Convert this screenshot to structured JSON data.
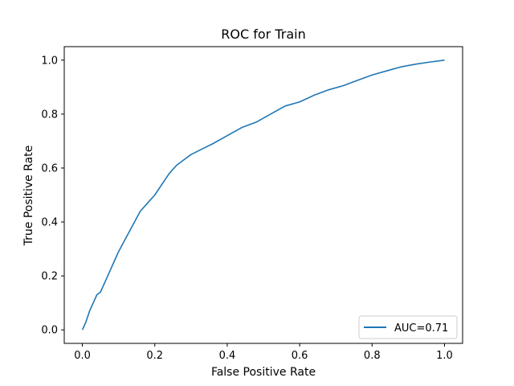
{
  "chart_data": {
    "type": "line",
    "title": "ROC for Train",
    "xlabel": "False Positive Rate",
    "ylabel": "True Positive Rate",
    "xlim": [
      -0.05,
      1.05
    ],
    "ylim": [
      -0.05,
      1.05
    ],
    "xticks": [
      0.0,
      0.2,
      0.4,
      0.6,
      0.8,
      1.0
    ],
    "yticks": [
      0.0,
      0.2,
      0.4,
      0.6,
      0.8,
      1.0
    ],
    "xtick_labels": [
      "0.0",
      "0.2",
      "0.4",
      "0.6",
      "0.8",
      "1.0"
    ],
    "ytick_labels": [
      "0.0",
      "0.2",
      "0.4",
      "0.6",
      "0.8",
      "1.0"
    ],
    "grid": false,
    "legend_position": "lower right",
    "series": [
      {
        "name": "AUC=0.71",
        "color": "#1f77b4",
        "x": [
          0.0,
          0.005,
          0.01,
          0.015,
          0.02,
          0.03,
          0.04,
          0.05,
          0.06,
          0.07,
          0.08,
          0.09,
          0.1,
          0.12,
          0.14,
          0.16,
          0.18,
          0.2,
          0.22,
          0.24,
          0.26,
          0.28,
          0.3,
          0.33,
          0.36,
          0.4,
          0.44,
          0.48,
          0.52,
          0.56,
          0.6,
          0.64,
          0.68,
          0.72,
          0.76,
          0.8,
          0.84,
          0.88,
          0.92,
          0.96,
          1.0
        ],
        "y": [
          0.0,
          0.015,
          0.03,
          0.05,
          0.07,
          0.1,
          0.13,
          0.14,
          0.17,
          0.2,
          0.23,
          0.26,
          0.29,
          0.34,
          0.39,
          0.44,
          0.47,
          0.5,
          0.54,
          0.58,
          0.61,
          0.63,
          0.65,
          0.67,
          0.69,
          0.72,
          0.75,
          0.77,
          0.8,
          0.83,
          0.845,
          0.87,
          0.89,
          0.905,
          0.925,
          0.945,
          0.96,
          0.975,
          0.985,
          0.993,
          1.0
        ]
      }
    ]
  }
}
